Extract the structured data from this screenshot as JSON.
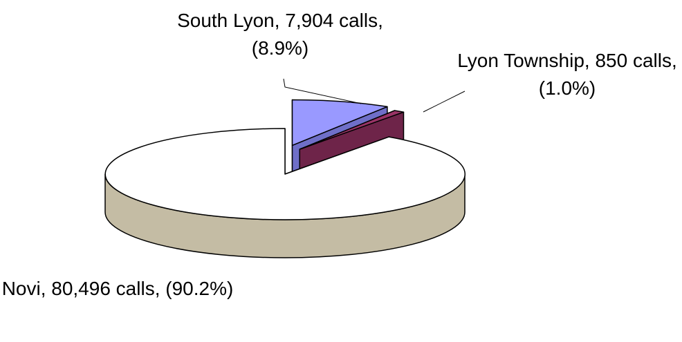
{
  "chart_data": {
    "type": "pie",
    "categories": [
      "Novi",
      "South Lyon",
      "Lyon Township"
    ],
    "values": [
      80496,
      7904,
      850
    ],
    "labels": [
      "Novi, 80,496 calls, (90.2%)",
      "South Lyon, 7,904 calls, (8.9%)",
      "Lyon Township, 850 calls, (1.0%)"
    ],
    "colors": [
      "#ffffff",
      "#9999ff",
      "#993366"
    ],
    "side_colors": [
      "#c4bca4",
      "#6f6fc8",
      "#6e2449"
    ]
  }
}
